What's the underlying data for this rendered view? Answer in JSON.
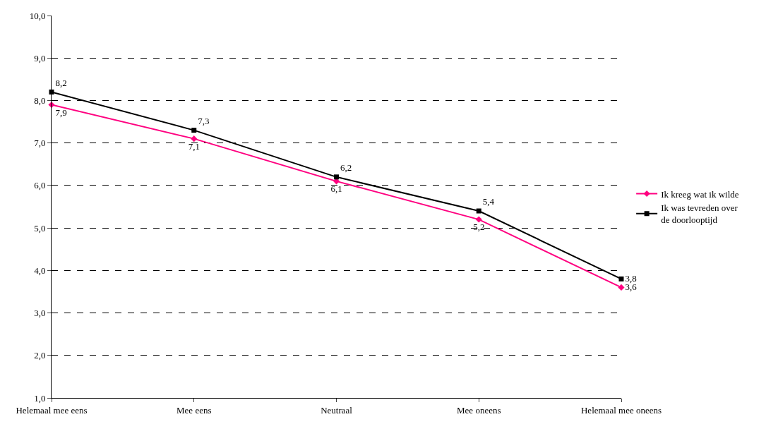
{
  "chart_data": {
    "type": "line",
    "categories": [
      "Helemaal mee eens",
      "Mee eens",
      "Neutraal",
      "Mee oneens",
      "Helemaal mee oneens"
    ],
    "series": [
      {
        "name": "Ik kreeg wat ik wilde",
        "color": "#ff0080",
        "values": [
          7.9,
          7.1,
          6.1,
          5.2,
          3.6
        ],
        "value_labels": [
          "7,9",
          "7,1",
          "6,1",
          "5,2",
          "3,6"
        ],
        "marker": "diamond"
      },
      {
        "name": "Ik was tevreden over de doorlooptijd",
        "color": "#000000",
        "values": [
          8.2,
          7.3,
          6.2,
          5.4,
          3.8
        ],
        "value_labels": [
          "8,2",
          "7,3",
          "6,2",
          "5,4",
          "3,8"
        ],
        "marker": "square"
      }
    ],
    "ylim": [
      1,
      10
    ],
    "yticks": [
      {
        "value": 1,
        "label": "1,0"
      },
      {
        "value": 2,
        "label": "2,0"
      },
      {
        "value": 3,
        "label": "3,0"
      },
      {
        "value": 4,
        "label": "4,0"
      },
      {
        "value": 5,
        "label": "5,0"
      },
      {
        "value": 6,
        "label": "6,0"
      },
      {
        "value": 7,
        "label": "7,0"
      },
      {
        "value": 8,
        "label": "8,0"
      },
      {
        "value": 9,
        "label": "9,0"
      },
      {
        "value": 10,
        "label": "10,0"
      }
    ],
    "grid": "y",
    "legend": "right",
    "line_style": "solid"
  }
}
